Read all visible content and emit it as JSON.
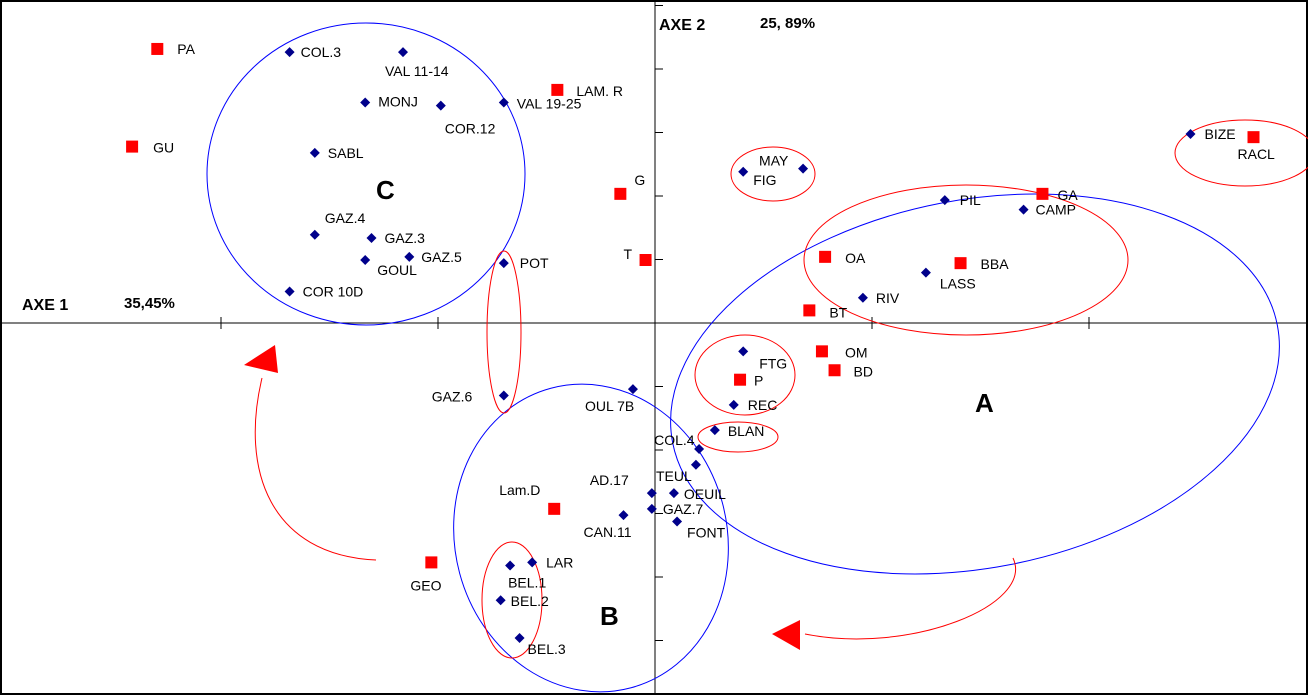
{
  "chart_data": {
    "type": "scatter",
    "title": "",
    "axis1": {
      "label": "AXE 1",
      "percent": "35,45%"
    },
    "axis2": {
      "label": "AXE 2",
      "percent": "25, 89%"
    },
    "xlim": [
      -10.3,
      10.1
    ],
    "ylim": [
      -5.8,
      4.9
    ],
    "grid": false,
    "legend": "none",
    "colors": {
      "site": "#00008B",
      "variable": "#FF0000",
      "cluster": "#0000FF",
      "subgroup": "#FF0000",
      "arrow": "#FF0000"
    },
    "series": [
      {
        "marker": "diamond",
        "color": "#00008B",
        "points": [
          {
            "label": "COL.3",
            "x": -5.8,
            "y": 4.3
          },
          {
            "label": "VAL 11-14",
            "x": -4.0,
            "y": 4.3
          },
          {
            "label": "MONJ",
            "x": -4.6,
            "y": 3.5
          },
          {
            "label": "COR.12",
            "x": -3.4,
            "y": 3.45
          },
          {
            "label": "VAL 19-25",
            "x": -2.4,
            "y": 3.5
          },
          {
            "label": "SABL",
            "x": -5.4,
            "y": 2.7
          },
          {
            "label": "GAZ.4",
            "x": -5.4,
            "y": 1.4
          },
          {
            "label": "GAZ.3",
            "x": -4.5,
            "y": 1.35
          },
          {
            "label": "GOUL",
            "x": -4.6,
            "y": 1.0
          },
          {
            "label": "GAZ.5",
            "x": -3.9,
            "y": 1.05
          },
          {
            "label": "COR 10D",
            "x": -5.8,
            "y": 0.5
          },
          {
            "label": "POT",
            "x": -2.4,
            "y": 0.95
          },
          {
            "label": "GAZ.6",
            "x": -2.4,
            "y": -1.15
          },
          {
            "label": "OUL 7B",
            "x": -0.35,
            "y": -1.05
          },
          {
            "label": "MAY",
            "x": 2.35,
            "y": 2.45
          },
          {
            "label": "FIG",
            "x": 1.4,
            "y": 2.4
          },
          {
            "label": "PIL",
            "x": 4.6,
            "y": 1.95
          },
          {
            "label": "CAMP",
            "x": 5.85,
            "y": 1.8
          },
          {
            "label": "LASS",
            "x": 4.3,
            "y": 0.8
          },
          {
            "label": "RIV",
            "x": 3.3,
            "y": 0.4
          },
          {
            "label": "BIZE",
            "x": 8.5,
            "y": 3.0
          },
          {
            "label": "FTG",
            "x": 1.4,
            "y": -0.45
          },
          {
            "label": "REC",
            "x": 1.25,
            "y": -1.3
          },
          {
            "label": "BLAN",
            "x": 0.95,
            "y": -1.7
          },
          {
            "label": "COL.4",
            "x": 0.7,
            "y": -2.0
          },
          {
            "label": "TEUL",
            "x": 0.65,
            "y": -2.25
          },
          {
            "label": "AD.17",
            "x": -0.05,
            "y": -2.7
          },
          {
            "label": "OEUIL",
            "x": 0.3,
            "y": -2.7
          },
          {
            "label": "GAZ.7",
            "x": -0.05,
            "y": -2.95
          },
          {
            "label": "CAN.11",
            "x": -0.5,
            "y": -3.05
          },
          {
            "label": "FONT",
            "x": 0.35,
            "y": -3.15
          },
          {
            "label": "LAR",
            "x": -1.95,
            "y": -3.8
          },
          {
            "label": "BEL.1",
            "x": -2.3,
            "y": -3.85
          },
          {
            "label": "BEL.2",
            "x": -2.45,
            "y": -4.4
          },
          {
            "label": "BEL.3",
            "x": -2.15,
            "y": -5.0
          }
        ]
      },
      {
        "marker": "square",
        "color": "#FF0000",
        "points": [
          {
            "label": "PA",
            "x": -7.9,
            "y": 4.35
          },
          {
            "label": "GU",
            "x": -8.3,
            "y": 2.8
          },
          {
            "label": "LAM. R",
            "x": -1.55,
            "y": 3.7
          },
          {
            "label": "G",
            "x": -0.55,
            "y": 2.05
          },
          {
            "label": "T",
            "x": -0.15,
            "y": 1.0
          },
          {
            "label": "OA",
            "x": 2.7,
            "y": 1.05
          },
          {
            "label": "BBA",
            "x": 4.85,
            "y": 0.95
          },
          {
            "label": "GA",
            "x": 6.15,
            "y": 2.05
          },
          {
            "label": "BT",
            "x": 2.45,
            "y": 0.2
          },
          {
            "label": "OM",
            "x": 2.65,
            "y": -0.45
          },
          {
            "label": "BD",
            "x": 2.85,
            "y": -0.75
          },
          {
            "label": "P",
            "x": 1.35,
            "y": -0.9
          },
          {
            "label": "RACL",
            "x": 9.5,
            "y": 2.95
          },
          {
            "label": "Lam.D",
            "x": -1.6,
            "y": -2.95
          },
          {
            "label": "GEO",
            "x": -3.55,
            "y": -3.8
          }
        ]
      }
    ],
    "groups": [
      "A",
      "B",
      "C"
    ]
  }
}
